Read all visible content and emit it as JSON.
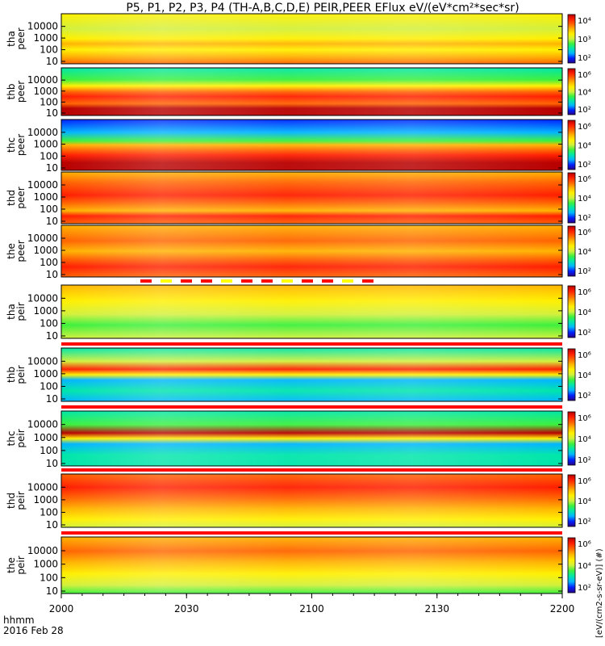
{
  "title": "P5, P1, P2, P3, P4 (TH-A,B,C,D,E) PEIR,PEER EFlux eV/(eV*cm²*sec*sr)",
  "colors": {
    "scale": [
      "#2a008a",
      "#0022ff",
      "#00b4ff",
      "#00e6aa",
      "#3cf03c",
      "#d2f03c",
      "#fff000",
      "#ffb400",
      "#ff6400",
      "#ff1e00",
      "#b80000"
    ],
    "flag_red": "#ff0000",
    "flag_yellow": "#ffff00"
  },
  "chart_data": {
    "type": "heatmap",
    "x_label_left": [
      "hhmm",
      "2016 Feb 28"
    ],
    "x_ticks": [
      "2000",
      "2030",
      "2100",
      "2130",
      "2200"
    ],
    "x_minor_ticks_per_major": 6,
    "x_range": [
      "20:00",
      "22:00"
    ],
    "y_scale": "log",
    "y_ticks": [
      "10",
      "100",
      "1000",
      "10000"
    ],
    "colorbar_unit": "[eV/(cm2-s-sr-eV)] (#)",
    "panels": [
      {
        "ylabel": [
          "tha",
          "peer"
        ],
        "colorbar": [
          "10⁴",
          "10³",
          "10²"
        ],
        "eflux_log_range": [
          1.5,
          6
        ],
        "flag": "none"
      },
      {
        "ylabel": [
          "thb",
          "peer"
        ],
        "colorbar": [
          "10⁶",
          "10⁴",
          "10²"
        ],
        "eflux_log_range": [
          1,
          7
        ],
        "flag": "none"
      },
      {
        "ylabel": [
          "thc",
          "peer"
        ],
        "colorbar": [
          "10⁶",
          "10⁴",
          "10²"
        ],
        "eflux_log_range": [
          1,
          7
        ],
        "flag": "none"
      },
      {
        "ylabel": [
          "thd",
          "peer"
        ],
        "colorbar": [
          "10⁶",
          "10⁴",
          "10²"
        ],
        "eflux_log_range": [
          1,
          7
        ],
        "flag": "none"
      },
      {
        "ylabel": [
          "the",
          "peer"
        ],
        "colorbar": [
          "10⁶",
          "10⁴",
          "10²"
        ],
        "eflux_log_range": [
          1,
          7
        ],
        "flag": "mixed"
      },
      {
        "ylabel": [
          "tha",
          "peir"
        ],
        "colorbar": [
          "10⁶",
          "10⁴",
          "10²"
        ],
        "eflux_log_range": [
          1,
          7
        ],
        "flag": "red"
      },
      {
        "ylabel": [
          "thb",
          "peir"
        ],
        "colorbar": [
          "10⁶",
          "10⁴",
          "10²"
        ],
        "eflux_log_range": [
          1,
          7
        ],
        "flag": "red"
      },
      {
        "ylabel": [
          "thc",
          "peir"
        ],
        "colorbar": [
          "10⁶",
          "10⁴",
          "10²"
        ],
        "eflux_log_range": [
          1,
          7
        ],
        "flag": "red"
      },
      {
        "ylabel": [
          "thd",
          "peir"
        ],
        "colorbar": [
          "10⁶",
          "10⁴",
          "10²"
        ],
        "eflux_log_range": [
          1,
          7
        ],
        "flag": "red"
      },
      {
        "ylabel": [
          "the",
          "peir"
        ],
        "colorbar": [
          "10⁶",
          "10⁴",
          "10²"
        ],
        "eflux_log_range": [
          1,
          7
        ],
        "flag": "none"
      }
    ]
  }
}
